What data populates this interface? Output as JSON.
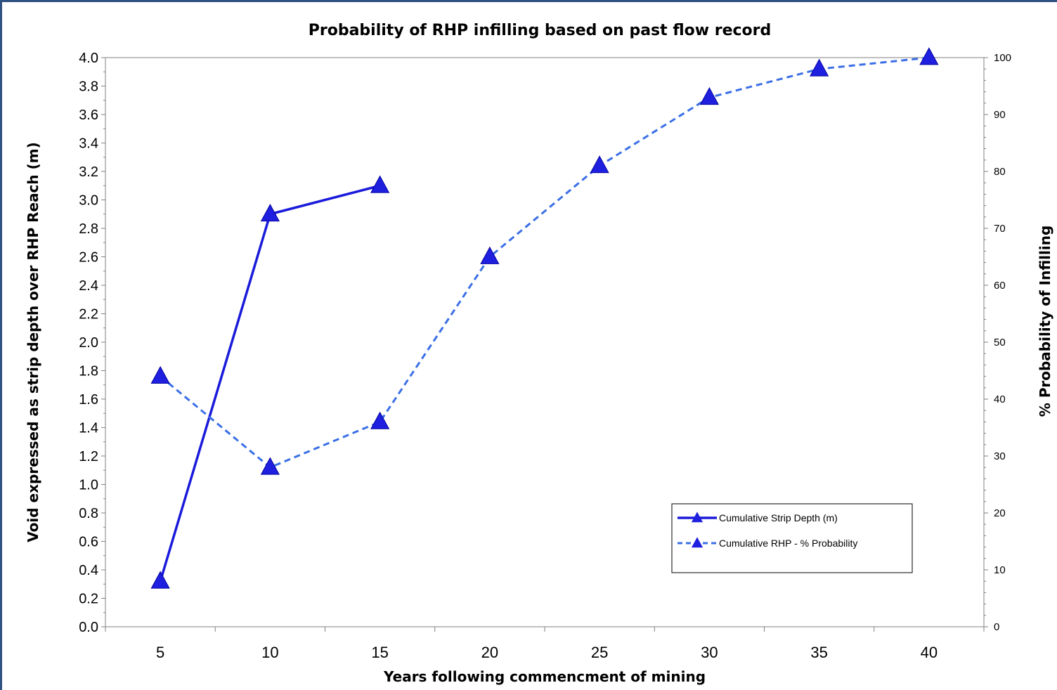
{
  "chart_data": {
    "type": "line",
    "title": "Probability of RHP infilling based on past flow record",
    "xlabel": "Years following commencment of mining",
    "ylabel_left": "Void expressed as strip depth  over RHP Reach (m)",
    "ylabel_right": "% Probability of Infilling",
    "x": [
      5,
      10,
      15,
      20,
      25,
      30,
      35,
      40
    ],
    "x_tick_labels": [
      "5",
      "10",
      "15",
      "20",
      "25",
      "30",
      "35",
      "40"
    ],
    "ylim_left": [
      0,
      4.0
    ],
    "ylim_right": [
      0,
      100
    ],
    "y_left_ticks": [
      "0.0",
      "0.2",
      "0.4",
      "0.6",
      "0.8",
      "1.0",
      "1.2",
      "1.4",
      "1.6",
      "1.8",
      "2.0",
      "2.2",
      "2.4",
      "2.6",
      "2.8",
      "3.0",
      "3.2",
      "3.4",
      "3.6",
      "3.8",
      "4.0"
    ],
    "y_right_ticks": [
      "0",
      "10",
      "20",
      "30",
      "40",
      "50",
      "60",
      "70",
      "80",
      "90",
      "100"
    ],
    "grid": false,
    "legend_position": "right",
    "series": [
      {
        "name": "Cumulative Strip Depth (m)",
        "axis": "left",
        "style": "solid",
        "color": "#1a1adb",
        "x": [
          5,
          10,
          15
        ],
        "values": [
          0.32,
          2.9,
          3.1
        ]
      },
      {
        "name": "Cumulative RHP - % Probability",
        "axis": "right",
        "style": "dashed",
        "color": "#3b6fe6",
        "x": [
          5,
          10,
          15,
          20,
          25,
          30,
          35,
          40
        ],
        "values": [
          44,
          28,
          36,
          65,
          81,
          93,
          98,
          100
        ]
      }
    ]
  },
  "colors": {
    "frame": "#2f5283",
    "marker": "#1f1fe0"
  }
}
